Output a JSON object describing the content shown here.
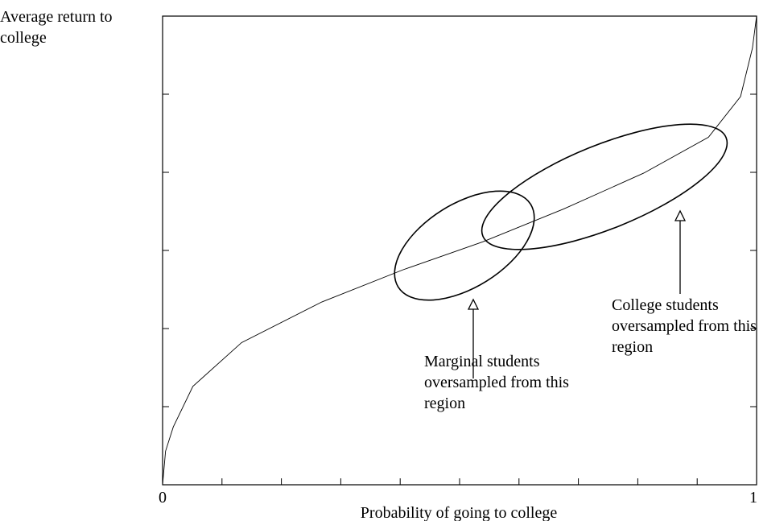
{
  "chart_data": {
    "type": "line",
    "y_label": "Average return to college",
    "x_label": "Probability of going to college",
    "x": [
      0,
      0.005,
      0.018,
      0.051,
      0.133,
      0.268,
      0.404,
      0.539,
      0.675,
      0.81,
      0.919,
      0.973,
      0.993,
      1.0
    ],
    "series": [
      {
        "color": "#000000",
        "values": [
          0,
          0.43,
          0.74,
          1.26,
          1.82,
          2.34,
          2.75,
          3.11,
          3.53,
          3.99,
          4.45,
          4.97,
          5.59,
          6.0
        ]
      }
    ],
    "xlim": [
      0,
      1
    ],
    "ylim": [
      0,
      6
    ],
    "xticks": [
      0,
      1
    ],
    "x_minor_ticks": [
      0.1,
      0.2,
      0.3,
      0.4,
      0.5,
      0.6,
      0.7,
      0.8,
      0.9
    ],
    "yticks": [
      1,
      2,
      3,
      4,
      5
    ],
    "annotations": [
      "Marginal students oversampled from this region",
      "College students oversampled from this region"
    ]
  }
}
